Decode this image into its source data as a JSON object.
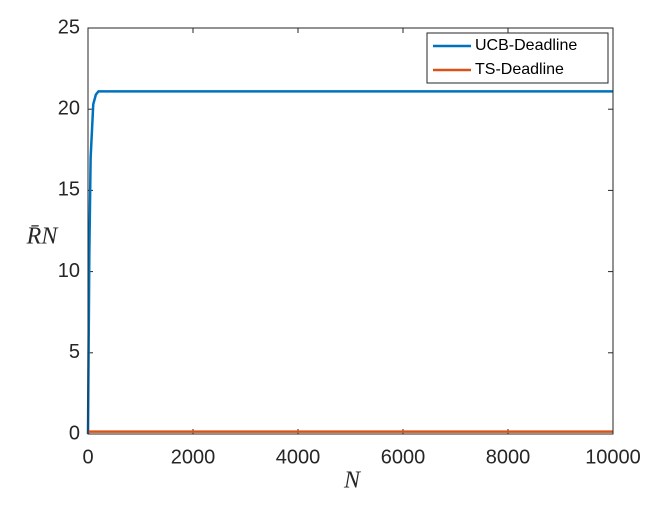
{
  "chart_data": {
    "type": "line",
    "xlabel": "N",
    "ylabel": "R̄N",
    "x": [
      0,
      25,
      50,
      100,
      150,
      200,
      500,
      10000
    ],
    "series": [
      {
        "name": "UCB-Deadline",
        "color": "#0072bd",
        "values": [
          0,
          11,
          17,
          20.3,
          20.9,
          21.1,
          21.1,
          21.1
        ]
      },
      {
        "name": "TS-Deadline",
        "color": "#d95319",
        "values": [
          0.15,
          0.15,
          0.15,
          0.15,
          0.15,
          0.15,
          0.15,
          0.15
        ]
      }
    ],
    "xlim": [
      0,
      10000
    ],
    "xticks": [
      0,
      2000,
      4000,
      6000,
      8000,
      10000
    ],
    "ylim": [
      0,
      25
    ],
    "yticks": [
      0,
      5,
      10,
      15,
      20,
      25
    ],
    "grid": false,
    "legend": "top-right"
  }
}
